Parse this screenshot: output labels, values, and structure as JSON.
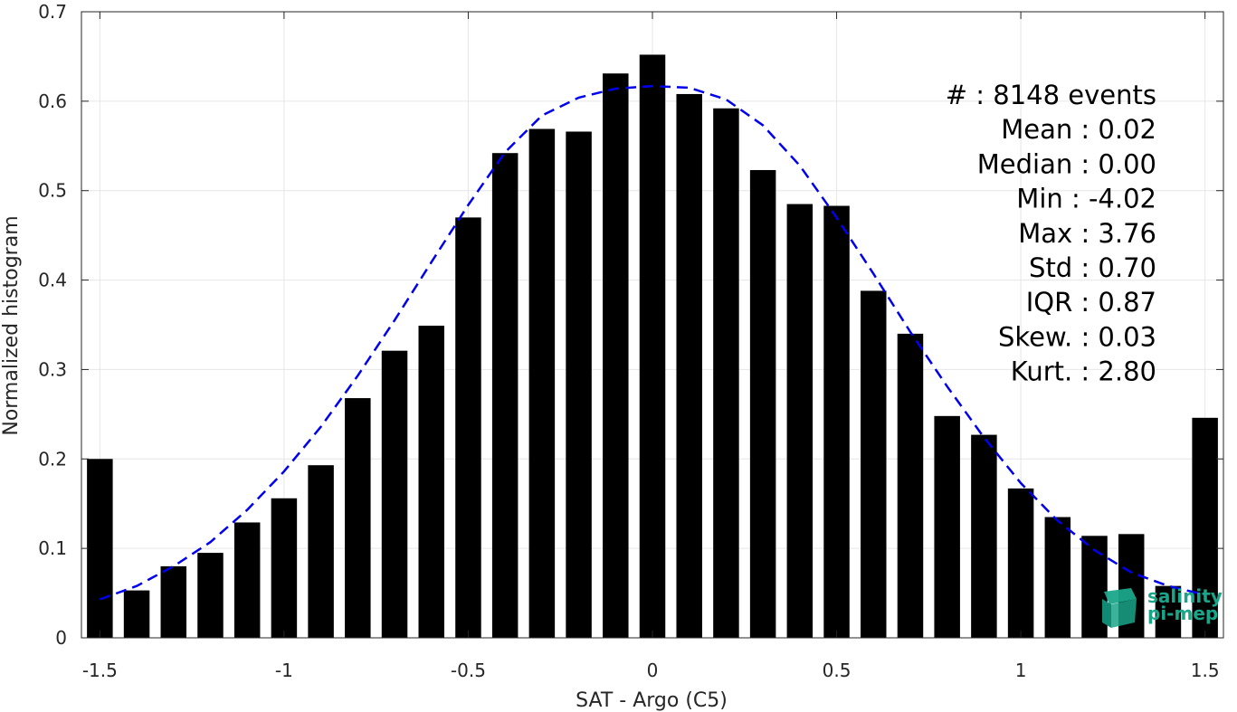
{
  "chart_data": {
    "type": "bar",
    "xlabel": "SAT - Argo (C5)",
    "ylabel": "Normalized histogram",
    "xlim": [
      -1.55,
      1.55
    ],
    "ylim": [
      0,
      0.7
    ],
    "grid": true,
    "x_ticks": [
      -1.5,
      -1,
      -0.5,
      0,
      0.5,
      1,
      1.5
    ],
    "x_tick_labels": [
      "-1.5",
      "-1",
      "-0.5",
      "0",
      "0.5",
      "1",
      "1.5"
    ],
    "y_ticks": [
      0,
      0.1,
      0.2,
      0.3,
      0.4,
      0.5,
      0.6,
      0.7
    ],
    "y_tick_labels": [
      "0",
      "0.1",
      "0.2",
      "0.3",
      "0.4",
      "0.5",
      "0.6",
      "0.7"
    ],
    "bar_width": 0.07,
    "bars": {
      "x": [
        -1.5,
        -1.4,
        -1.3,
        -1.2,
        -1.1,
        -1.0,
        -0.9,
        -0.8,
        -0.7,
        -0.6,
        -0.5,
        -0.4,
        -0.3,
        -0.2,
        -0.1,
        0.0,
        0.1,
        0.2,
        0.3,
        0.4,
        0.5,
        0.6,
        0.7,
        0.8,
        0.9,
        1.0,
        1.1,
        1.2,
        1.3,
        1.4,
        1.5
      ],
      "values": [
        0.2,
        0.053,
        0.08,
        0.095,
        0.129,
        0.156,
        0.193,
        0.268,
        0.321,
        0.349,
        0.47,
        0.542,
        0.569,
        0.566,
        0.631,
        0.652,
        0.608,
        0.592,
        0.523,
        0.485,
        0.483,
        0.388,
        0.34,
        0.248,
        0.227,
        0.167,
        0.135,
        0.114,
        0.116,
        0.058,
        0.246
      ],
      "color": "#000000"
    },
    "fit_curve": {
      "style": "dashed",
      "color": "#0000ee",
      "x": [
        -1.5,
        -1.4,
        -1.3,
        -1.2,
        -1.1,
        -1.0,
        -0.9,
        -0.8,
        -0.7,
        -0.6,
        -0.5,
        -0.4,
        -0.3,
        -0.2,
        -0.1,
        0.0,
        0.1,
        0.2,
        0.3,
        0.4,
        0.5,
        0.6,
        0.7,
        0.8,
        0.9,
        1.0,
        1.1,
        1.2,
        1.3,
        1.4,
        1.5
      ],
      "y": [
        0.043,
        0.058,
        0.08,
        0.107,
        0.143,
        0.186,
        0.236,
        0.293,
        0.355,
        0.42,
        0.484,
        0.543,
        0.584,
        0.604,
        0.614,
        0.617,
        0.615,
        0.602,
        0.573,
        0.528,
        0.47,
        0.407,
        0.342,
        0.281,
        0.224,
        0.173,
        0.131,
        0.098,
        0.073,
        0.058,
        0.048
      ]
    },
    "stats": [
      "#  : 8148 events",
      "Mean : 0.02",
      "Median : 0.00",
      "Min : -4.02",
      "Max : 3.76",
      "Std : 0.70",
      "IQR : 0.87",
      "Skew. : 0.03",
      "Kurt. : 2.80"
    ]
  },
  "logo": {
    "line1": "salinity",
    "line2": "pi-mep",
    "color": "#1aa58a"
  }
}
